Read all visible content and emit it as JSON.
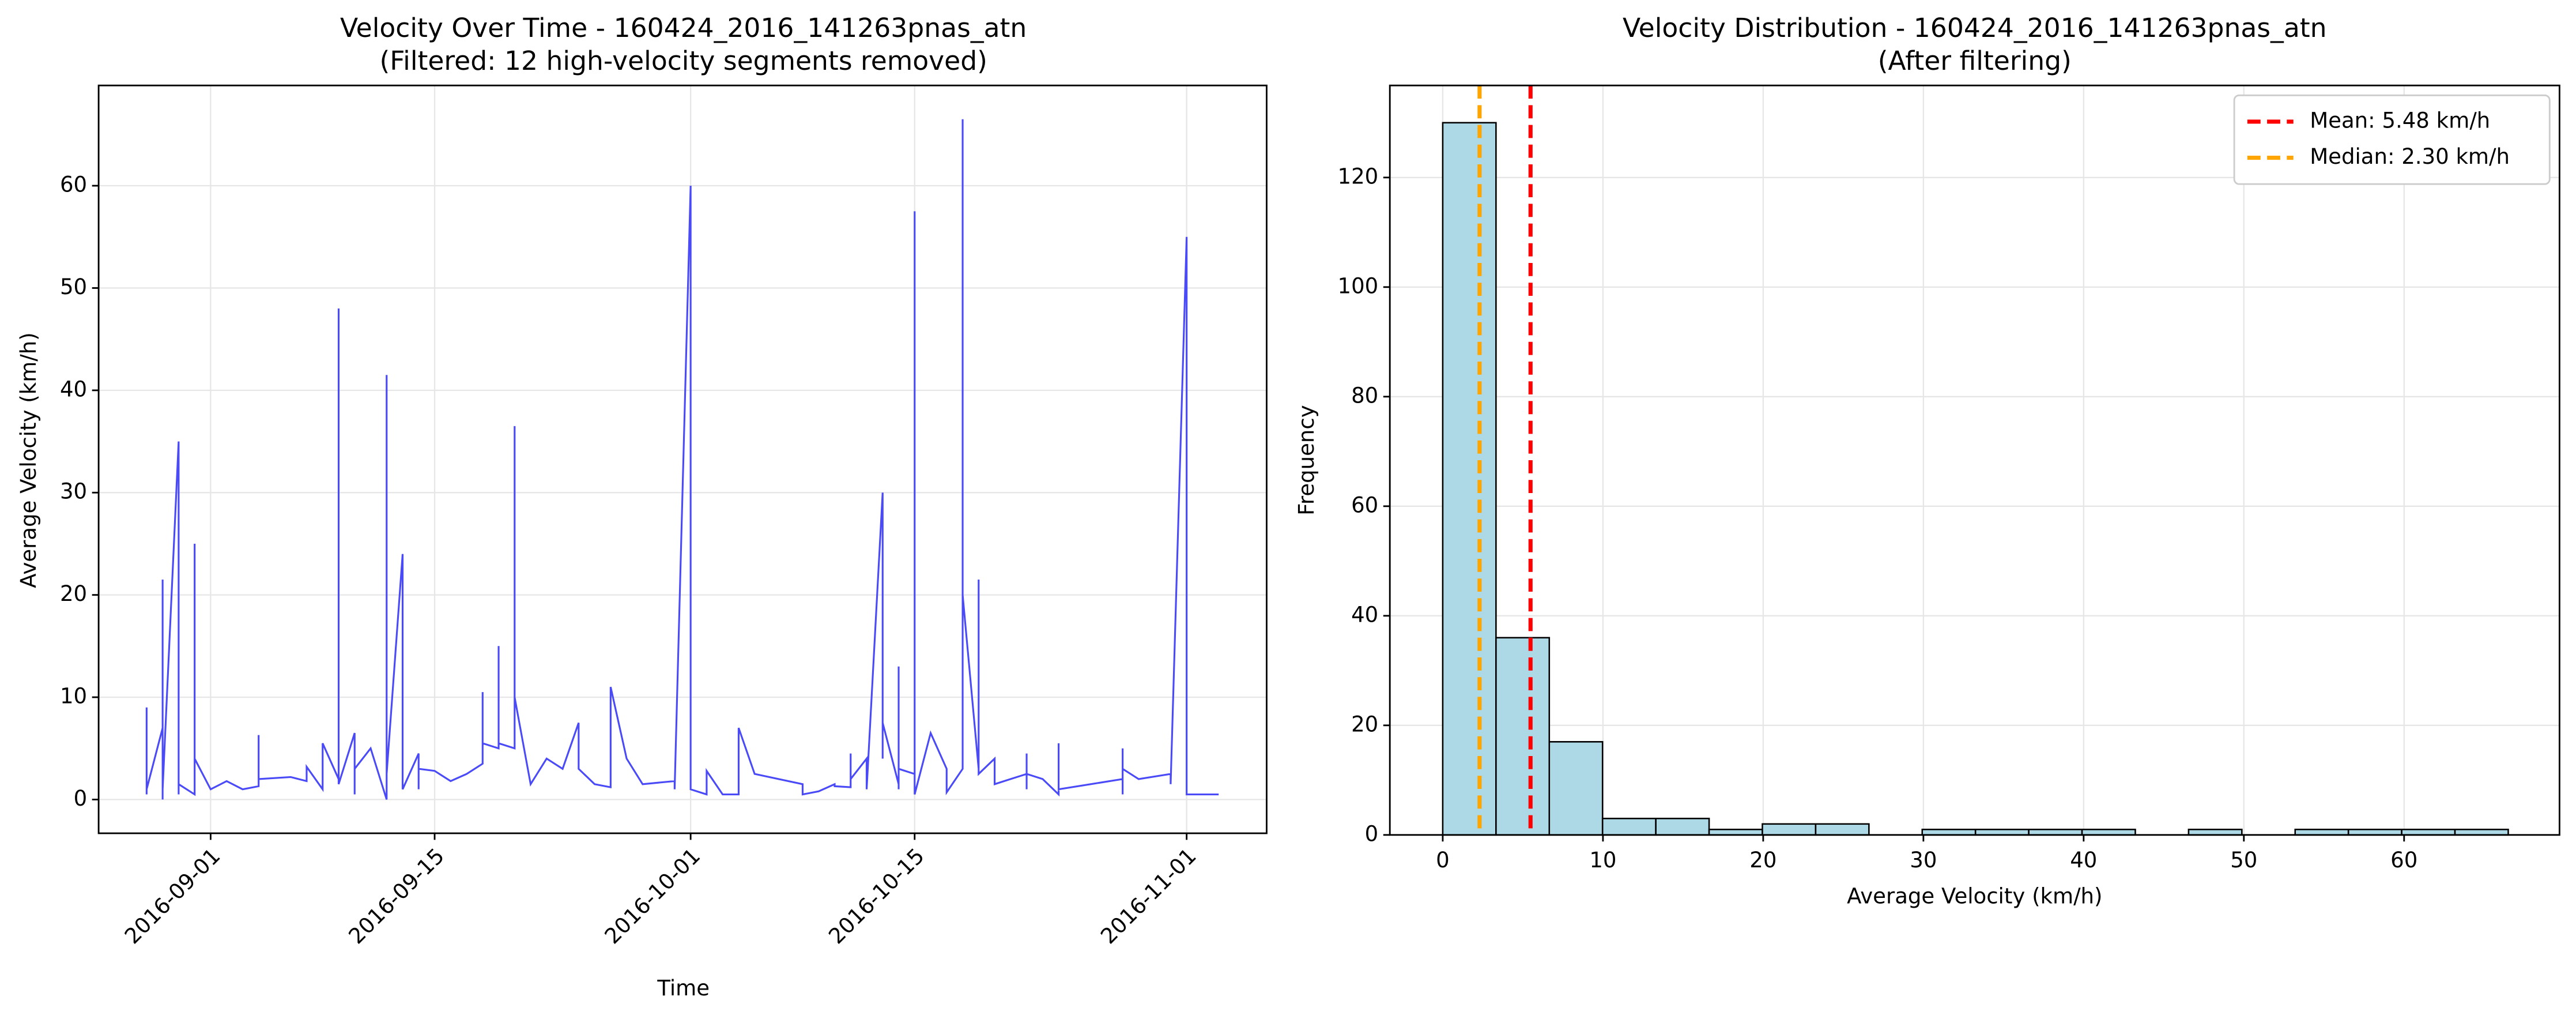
{
  "chart_data": [
    {
      "type": "line",
      "title": "Velocity Over Time - 160424_2016_141263pnas_atn",
      "subtitle": "(Filtered: 12 high-velocity segments removed)",
      "xlabel": "Time",
      "ylabel": "Average Velocity (km/h)",
      "x": [
        "2016-08-28",
        "2016-08-28",
        "2016-08-28",
        "2016-08-28",
        "2016-08-29",
        "2016-08-29",
        "2016-08-29",
        "2016-08-29",
        "2016-08-29",
        "2016-08-29",
        "2016-08-30",
        "2016-08-30",
        "2016-08-30",
        "2016-08-31",
        "2016-08-31",
        "2016-08-31",
        "2016-09-01",
        "2016-09-02",
        "2016-09-03",
        "2016-09-04",
        "2016-09-04",
        "2016-09-04",
        "2016-09-06",
        "2016-09-07",
        "2016-09-07",
        "2016-09-08",
        "2016-09-08",
        "2016-09-09",
        "2016-09-09",
        "2016-09-09",
        "2016-09-10",
        "2016-09-10",
        "2016-09-10",
        "2016-09-10",
        "2016-09-11",
        "2016-09-12",
        "2016-09-12",
        "2016-09-12",
        "2016-09-12",
        "2016-09-12",
        "2016-09-13",
        "2016-09-13",
        "2016-09-13",
        "2016-09-13",
        "2016-09-13",
        "2016-09-14",
        "2016-09-14",
        "2016-09-14",
        "2016-09-15",
        "2016-09-16",
        "2016-09-17",
        "2016-09-18",
        "2016-09-18",
        "2016-09-18",
        "2016-09-19",
        "2016-09-19",
        "2016-09-19",
        "2016-09-20",
        "2016-09-20",
        "2016-09-20",
        "2016-09-21",
        "2016-09-22",
        "2016-09-23",
        "2016-09-24",
        "2016-09-24",
        "2016-09-25",
        "2016-09-26",
        "2016-09-26",
        "2016-09-27",
        "2016-09-28",
        "2016-09-30",
        "2016-09-30",
        "2016-10-01",
        "2016-10-01",
        "2016-10-02",
        "2016-10-02",
        "2016-10-03",
        "2016-10-04",
        "2016-10-04",
        "2016-10-05",
        "2016-10-08",
        "2016-10-08",
        "2016-10-09",
        "2016-10-10",
        "2016-10-10",
        "2016-10-11",
        "2016-10-11",
        "2016-10-11",
        "2016-10-12",
        "2016-10-12",
        "2016-10-13",
        "2016-10-13",
        "2016-10-13",
        "2016-10-14",
        "2016-10-14",
        "2016-10-14",
        "2016-10-14",
        "2016-10-15",
        "2016-10-15",
        "2016-10-15",
        "2016-10-15",
        "2016-10-16",
        "2016-10-17",
        "2016-10-17",
        "2016-10-18",
        "2016-10-18",
        "2016-10-18",
        "2016-10-19",
        "2016-10-19",
        "2016-10-19",
        "2016-10-20",
        "2016-10-20",
        "2016-10-21",
        "2016-10-22",
        "2016-10-22",
        "2016-10-22",
        "2016-10-22",
        "2016-10-23",
        "2016-10-24",
        "2016-10-24",
        "2016-10-24",
        "2016-10-26",
        "2016-10-28",
        "2016-10-28",
        "2016-10-28",
        "2016-10-28",
        "2016-10-29",
        "2016-10-31",
        "2016-10-31",
        "2016-11-01",
        "2016-11-01",
        "2016-11-03"
      ],
      "series": [
        {
          "color": "#4a4af7",
          "values": [
            4,
            0.5,
            9,
            1,
            7,
            0,
            21.5,
            0.5,
            8,
            1,
            35,
            0.5,
            1.5,
            0.5,
            25,
            4,
            1,
            1.8,
            1,
            1.3,
            6.3,
            2,
            2.2,
            1.8,
            3.2,
            1,
            5.5,
            2,
            48,
            1.5,
            6.5,
            0.5,
            5,
            3,
            5,
            0,
            41.5,
            2,
            5,
            2.5,
            24,
            8,
            8.5,
            14,
            1,
            4.5,
            1,
            3,
            2.8,
            1.8,
            2.5,
            3.5,
            10.5,
            5.5,
            5,
            15,
            5.5,
            5,
            36.5,
            10,
            1.5,
            4,
            3,
            7.5,
            3,
            1.5,
            1.2,
            11,
            4,
            1.5,
            1.8,
            1,
            60,
            1,
            0.5,
            2.8,
            0.5,
            0.5,
            7,
            2.5,
            1.5,
            0.5,
            0.8,
            1.5,
            1.3,
            1.2,
            4.5,
            2,
            4,
            1,
            30,
            4,
            7.5,
            1.5,
            13,
            1,
            3,
            2.5,
            57.5,
            1,
            0.5,
            6.5,
            3,
            0.7,
            3,
            66.5,
            20,
            3,
            21.5,
            2.5,
            4,
            1.5,
            2,
            2.5,
            4.5,
            1,
            2.5,
            2,
            0.5,
            5.5,
            1,
            1.5,
            2,
            5,
            0.5,
            3,
            2,
            2.5,
            1.5,
            55,
            0.5,
            0.5
          ]
        }
      ],
      "xlim": [
        "2016-08-25",
        "2016-11-06"
      ],
      "xticks": [
        "2016-09-01",
        "2016-09-15",
        "2016-10-01",
        "2016-10-15",
        "2016-11-01"
      ],
      "ylim": [
        -3.3,
        69.8
      ],
      "yticks": [
        0,
        10,
        20,
        30,
        40,
        50,
        60
      ],
      "grid": true
    },
    {
      "type": "histogram",
      "title": "Velocity Distribution - 160424_2016_141263pnas_atn",
      "subtitle": "(After filtering)",
      "xlabel": "Average Velocity (km/h)",
      "ylabel": "Frequency",
      "bins": [
        0,
        3.325,
        6.65,
        9.975,
        13.3,
        16.625,
        19.95,
        23.275,
        26.6,
        29.925,
        33.25,
        36.575,
        39.9,
        43.225,
        46.55,
        49.875,
        53.2,
        56.525,
        59.85,
        63.175,
        66.5
      ],
      "values": [
        130,
        36,
        17,
        3,
        3,
        1,
        2,
        2,
        0,
        1,
        1,
        1,
        1,
        0,
        1,
        0,
        1,
        1,
        1,
        1
      ],
      "color": "#add8e6",
      "edgecolor": "#000000",
      "lines": [
        {
          "name": "Mean: 5.48 km/h",
          "value": 5.48,
          "color": "#ff0000"
        },
        {
          "name": "Median: 2.30 km/h",
          "value": 2.3,
          "color": "#ffa500"
        }
      ],
      "legend": "upper right",
      "xlim": [
        -3.3,
        69.7
      ],
      "xticks": [
        0,
        10,
        20,
        30,
        40,
        50,
        60
      ],
      "ylim": [
        0,
        136.8
      ],
      "yticks": [
        0,
        20,
        40,
        60,
        80,
        100,
        120
      ],
      "grid": true
    }
  ]
}
